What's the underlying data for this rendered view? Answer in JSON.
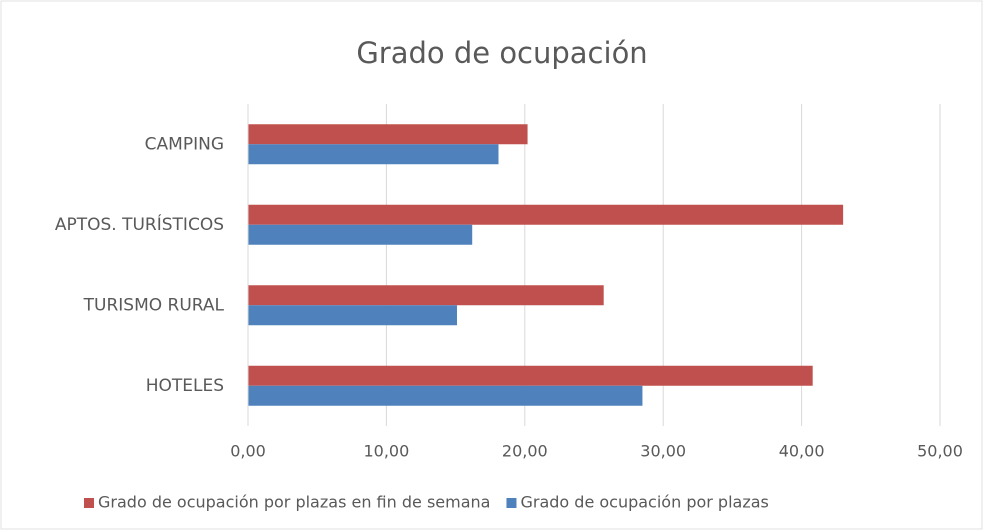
{
  "chart_data": {
    "type": "bar",
    "orientation": "horizontal",
    "title": "Grado de ocupación",
    "categories": [
      "CAMPING",
      "APTOS. TURÍSTICOS",
      "TURISMO RURAL",
      "HOTELES"
    ],
    "series": [
      {
        "name": "Grado de ocupación por plazas en fin de semana",
        "color": "#c0504d",
        "values": [
          20.2,
          43.0,
          25.7,
          40.8
        ]
      },
      {
        "name": "Grado de ocupación por plazas",
        "color": "#4f81bd",
        "values": [
          18.1,
          16.2,
          15.1,
          28.5
        ]
      }
    ],
    "xlim": [
      0,
      50
    ],
    "xticks": [
      {
        "value": 0,
        "label": "0,00"
      },
      {
        "value": 10,
        "label": "10,00"
      },
      {
        "value": 20,
        "label": "20,00"
      },
      {
        "value": 30,
        "label": "30,00"
      },
      {
        "value": 40,
        "label": "40,00"
      },
      {
        "value": 50,
        "label": "50,00"
      }
    ],
    "grid": true,
    "legend": "bottom"
  }
}
